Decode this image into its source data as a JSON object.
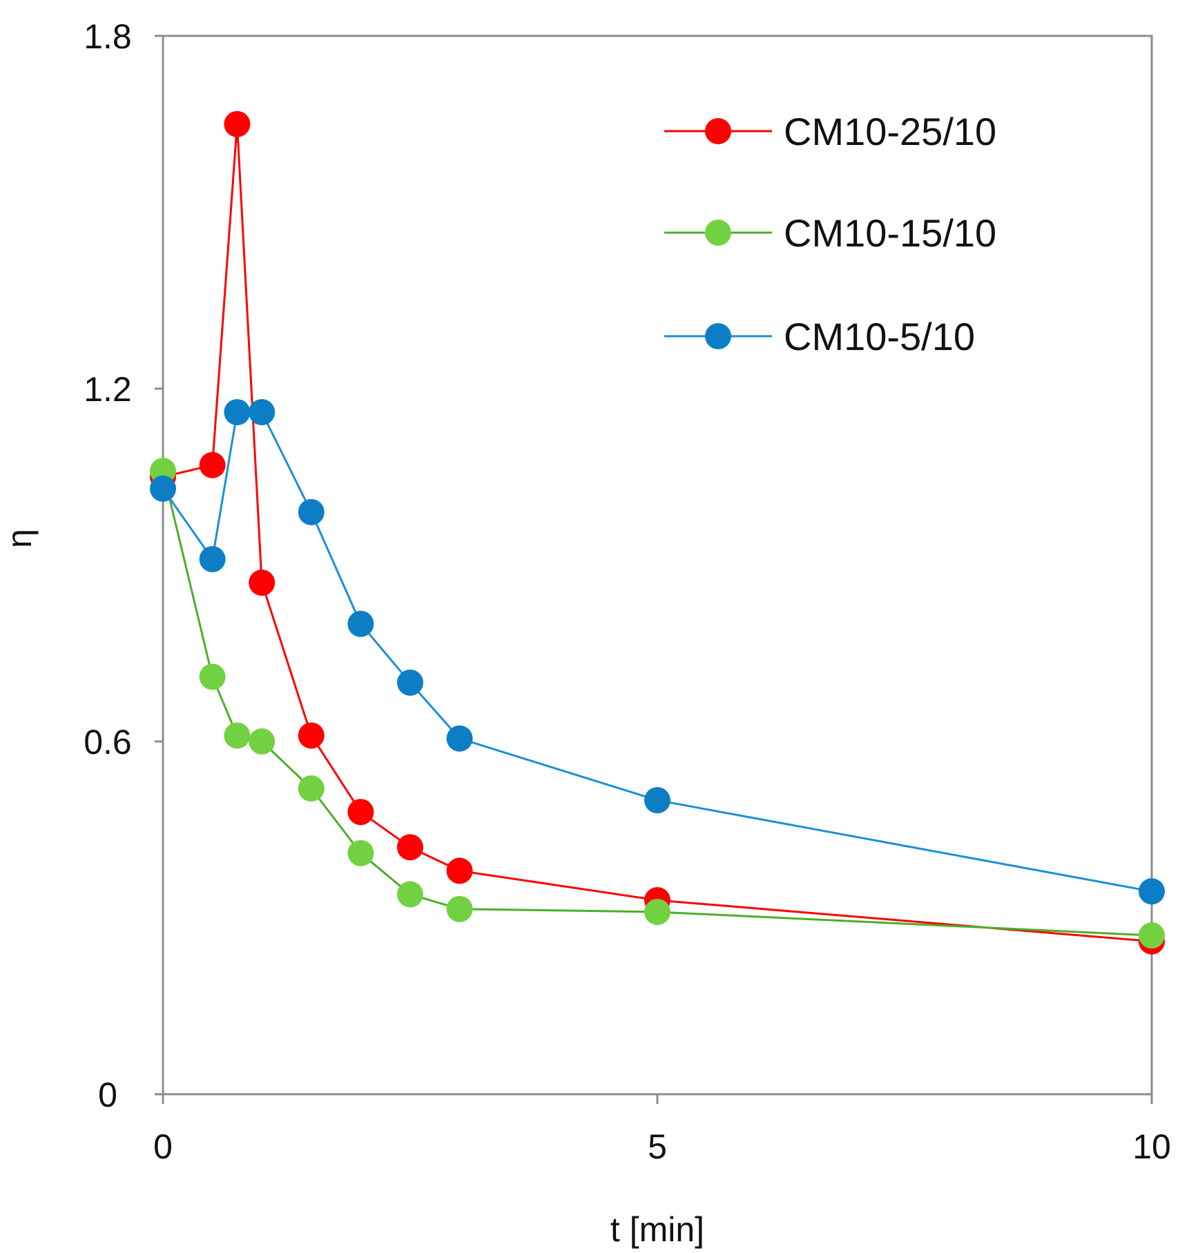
{
  "chart_data": {
    "type": "line",
    "title": "",
    "xlabel": "t [min]",
    "ylabel": "η",
    "xlim": [
      0,
      10
    ],
    "ylim": [
      0,
      1.8
    ],
    "xticks": [
      "0",
      "5",
      "10"
    ],
    "yticks": [
      "0",
      "0.6",
      "1.2",
      "1.8"
    ],
    "grid": false,
    "legend_position": "top-right",
    "series": [
      {
        "name": "CM10-25/10",
        "color": "#ff0000",
        "marker_color": "#ff0000",
        "x": [
          0,
          0.5,
          0.75,
          1.0,
          1.5,
          2.0,
          2.5,
          3.0,
          5.0,
          10.0
        ],
        "y": [
          1.05,
          1.07,
          1.65,
          0.87,
          0.61,
          0.48,
          0.42,
          0.38,
          0.33,
          0.26
        ]
      },
      {
        "name": "CM10-15/10",
        "color": "#4caf28",
        "marker_color": "#72d140",
        "x": [
          0,
          0.5,
          0.75,
          1.0,
          1.5,
          2.0,
          2.5,
          3.0,
          5.0,
          10.0
        ],
        "y": [
          1.06,
          0.71,
          0.61,
          0.6,
          0.52,
          0.41,
          0.34,
          0.315,
          0.31,
          0.27
        ]
      },
      {
        "name": "CM10-5/10",
        "color": "#1b8fd6",
        "marker_color": "#0d7ec6",
        "x": [
          0,
          0.5,
          0.75,
          1.0,
          1.5,
          2.0,
          2.5,
          3.0,
          5.0,
          10.0
        ],
        "y": [
          1.03,
          0.91,
          1.16,
          1.16,
          0.99,
          0.8,
          0.7,
          0.605,
          0.5,
          0.345
        ]
      }
    ]
  }
}
